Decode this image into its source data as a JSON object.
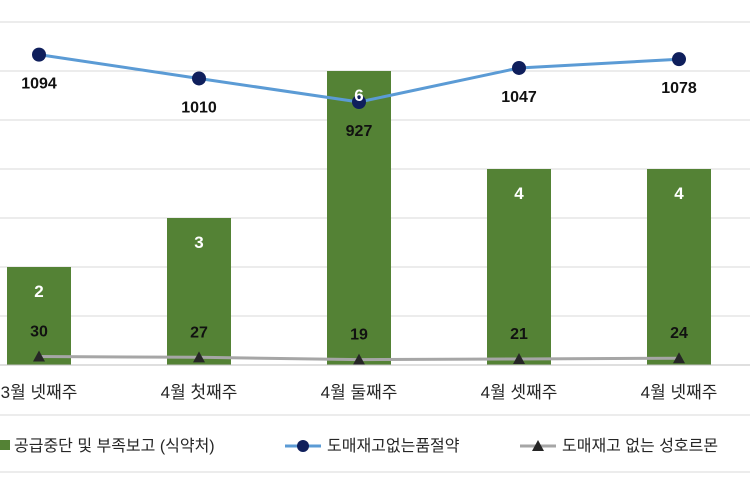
{
  "chart_data": {
    "type": "bar",
    "categories": [
      "3월 넷째주",
      "4월 첫째주",
      "4월 둘째주",
      "4월 셋째주",
      "4월 넷째주"
    ],
    "series": [
      {
        "name": "공급중단 및 부족보고 (식약처)",
        "type": "bar",
        "color": "#548235",
        "values": [
          2,
          3,
          6,
          4,
          4
        ]
      },
      {
        "name": "도매재고없는품절약",
        "type": "line",
        "color": "#5B9BD5",
        "marker_color": "#0F1F5C",
        "values": [
          1094,
          1010,
          927,
          1047,
          1078
        ]
      },
      {
        "name": "도매재고 없는 성호르몬",
        "type": "line",
        "color": "#A6A6A6",
        "marker_color": "#262626",
        "values": [
          30,
          27,
          19,
          21,
          24
        ]
      }
    ],
    "grid": true,
    "legend_position": "bottom"
  }
}
